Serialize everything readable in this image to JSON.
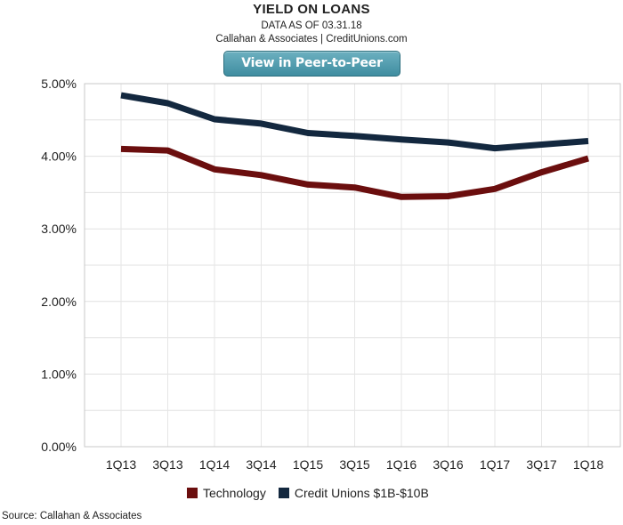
{
  "header": {
    "title": "YIELD ON LOANS",
    "date_line": "DATA AS OF 03.31.18",
    "credit_line": "Callahan & Associates | CreditUnions.com",
    "peer_button": "View in Peer-to-Peer"
  },
  "chart_data": {
    "type": "line",
    "title": "YIELD ON LOANS",
    "xlabel": "",
    "ylabel": "",
    "categories": [
      "1Q13",
      "3Q13",
      "1Q14",
      "3Q14",
      "1Q15",
      "3Q15",
      "1Q16",
      "3Q16",
      "1Q17",
      "3Q17",
      "1Q18"
    ],
    "ylim": [
      0,
      5
    ],
    "yticks": [
      "0.00%",
      "1.00%",
      "2.00%",
      "3.00%",
      "4.00%",
      "5.00%"
    ],
    "ytick_values": [
      0,
      1,
      2,
      3,
      4,
      5
    ],
    "grid": true,
    "legend_position": "bottom",
    "series": [
      {
        "name": "Technology",
        "color": "#6b0e0e",
        "values": [
          4.1,
          4.08,
          3.82,
          3.74,
          3.61,
          3.57,
          3.44,
          3.45,
          3.55,
          3.78,
          3.97
        ]
      },
      {
        "name": "Credit Unions $1B-$10B",
        "color": "#13283f",
        "values": [
          4.84,
          4.73,
          4.51,
          4.45,
          4.32,
          4.28,
          4.23,
          4.19,
          4.11,
          4.16,
          4.21
        ]
      }
    ]
  },
  "legend": {
    "items": [
      {
        "label": "Technology",
        "color": "#6b0e0e"
      },
      {
        "label": "Credit Unions $1B-$10B",
        "color": "#13283f"
      }
    ]
  },
  "footer": {
    "source": "Source: Callahan & Associates"
  }
}
